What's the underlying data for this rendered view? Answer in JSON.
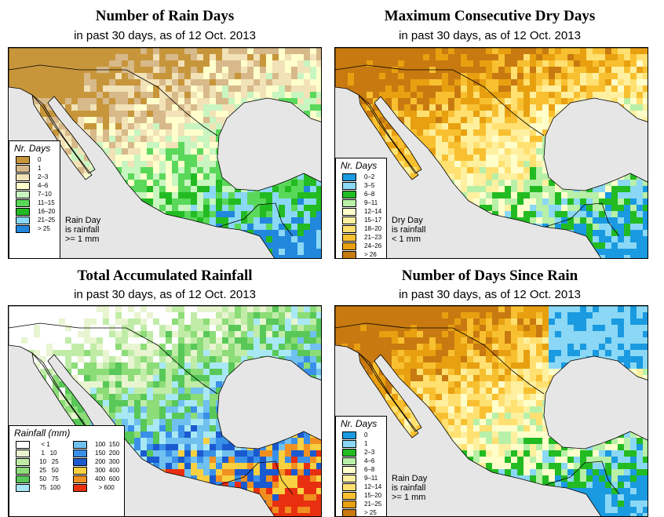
{
  "panels": [
    {
      "id": "rain_days",
      "title": "Number of Rain Days",
      "subtitle": "in past 30 days, as of  12 Oct. 2013",
      "legend": {
        "heading": "Nr. Days",
        "items": [
          {
            "label": "0",
            "color": "#c8963a"
          },
          {
            "label": "1",
            "color": "#d7b98a"
          },
          {
            "label": "2–3",
            "color": "#f2e2b8"
          },
          {
            "label": "4–6",
            "color": "#ffffcc"
          },
          {
            "label": "7–10",
            "color": "#c8f5c0"
          },
          {
            "label": "11–15",
            "color": "#5ad85a"
          },
          {
            "label": "16–20",
            "color": "#22bb22"
          },
          {
            "label": "21–25",
            "color": "#8ad8f5"
          },
          {
            "label": "> 25",
            "color": "#2288dd"
          }
        ]
      },
      "note": [
        "Rain Day",
        "is rainfall",
        ">= 1 mm"
      ]
    },
    {
      "id": "dry_days",
      "title": "Maximum Consecutive Dry Days",
      "subtitle": "in past 30 days, as of  12 Oct. 2013",
      "legend": {
        "heading": "Nr. Days",
        "items": [
          {
            "label": "0–2",
            "color": "#1a9ae0"
          },
          {
            "label": "3–5",
            "color": "#8ad8f5"
          },
          {
            "label": "6–8",
            "color": "#22bb22"
          },
          {
            "label": "9–11",
            "color": "#b8f0a8"
          },
          {
            "label": "12–14",
            "color": "#ffffcc"
          },
          {
            "label": "15–17",
            "color": "#fff0a0"
          },
          {
            "label": "18–20",
            "color": "#ffe070"
          },
          {
            "label": "21–23",
            "color": "#f8c030"
          },
          {
            "label": "24–26",
            "color": "#e8a010"
          },
          {
            "label": "> 26",
            "color": "#c87a10"
          }
        ]
      },
      "note": [
        "Dry Day",
        "is rainfall",
        "< 1 mm"
      ]
    },
    {
      "id": "total_rain",
      "title": "Total Accumulated Rainfall",
      "subtitle": "in past 30 days, as of  12 Oct. 2013",
      "legend": {
        "heading": "Rainfall (mm)",
        "items": [
          {
            "label": "  < 1",
            "color": "#ffffff"
          },
          {
            "label": "  1   10",
            "color": "#e8f5d0"
          },
          {
            "label": " 10   25",
            "color": "#c0eca8"
          },
          {
            "label": " 25   50",
            "color": "#8cdc78"
          },
          {
            "label": " 50   75",
            "color": "#58c858"
          },
          {
            "label": " 75  100",
            "color": "#a8e8f5"
          },
          {
            "label": "100  150",
            "color": "#70c0f0"
          },
          {
            "label": "150  200",
            "color": "#3a90e8"
          },
          {
            "label": "200  300",
            "color": "#1a5ad0"
          },
          {
            "label": "300  400",
            "color": "#f8d040"
          },
          {
            "label": "400  600",
            "color": "#f09020"
          },
          {
            "label": "  > 600",
            "color": "#e83010"
          }
        ]
      },
      "note": []
    },
    {
      "id": "since_rain",
      "title": "Number of Days Since Rain",
      "subtitle": "in past 30 days, as of  12 Oct. 2013",
      "legend": {
        "heading": "Nr. Days",
        "items": [
          {
            "label": "0",
            "color": "#1a9ae0"
          },
          {
            "label": "1",
            "color": "#8ad8f5"
          },
          {
            "label": "2–3",
            "color": "#22bb22"
          },
          {
            "label": "4–6",
            "color": "#b8f0a8"
          },
          {
            "label": "6–8",
            "color": "#ffffcc"
          },
          {
            "label": "9–11",
            "color": "#fff0a0"
          },
          {
            "label": "12–14",
            "color": "#ffe070"
          },
          {
            "label": "15–20",
            "color": "#f8c030"
          },
          {
            "label": "21–25",
            "color": "#e8a010"
          },
          {
            "label": "> 25",
            "color": "#c87a10"
          }
        ]
      },
      "note": [
        "Rain Day",
        "is rainfall",
        ">= 1 mm"
      ]
    }
  ]
}
